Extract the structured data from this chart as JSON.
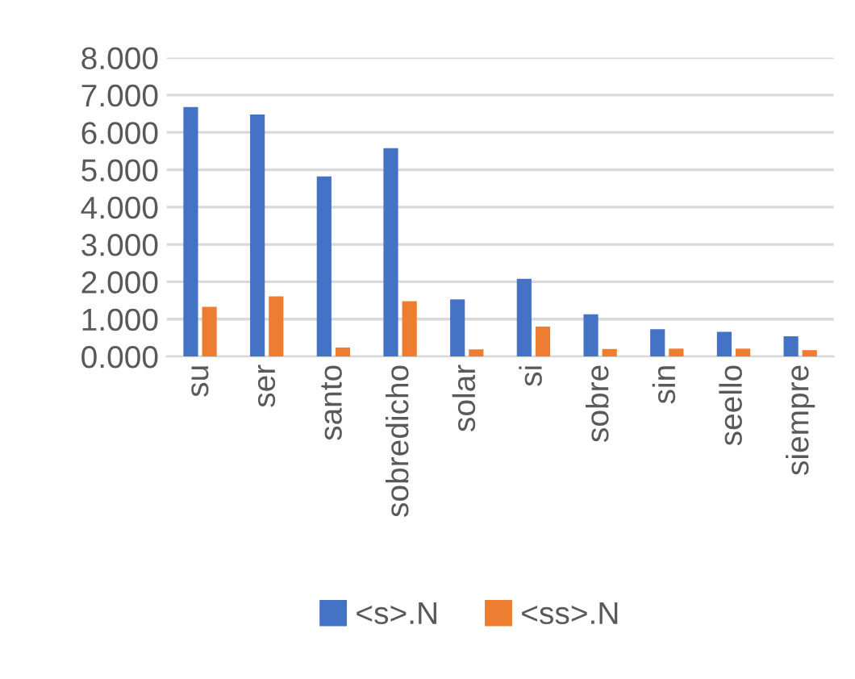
{
  "chart_data": {
    "type": "bar",
    "categories": [
      "su",
      "ser",
      "santo",
      "sobredicho",
      "solar",
      "si",
      "sobre",
      "sin",
      "seello",
      "siempre"
    ],
    "series": [
      {
        "name": "<s>.N",
        "color": "#4472c4",
        "values": [
          6.68,
          6.48,
          4.82,
          5.58,
          1.53,
          2.08,
          1.13,
          0.73,
          0.66,
          0.54
        ]
      },
      {
        "name": "<ss>.N",
        "color": "#ed7d31",
        "values": [
          1.33,
          1.61,
          0.24,
          1.48,
          0.19,
          0.8,
          0.2,
          0.21,
          0.21,
          0.17
        ]
      }
    ],
    "ylim": [
      0,
      8
    ],
    "yticks": [
      {
        "value": 0,
        "label": "0.000"
      },
      {
        "value": 1,
        "label": "1.000"
      },
      {
        "value": 2,
        "label": "2.000"
      },
      {
        "value": 3,
        "label": "3.000"
      },
      {
        "value": 4,
        "label": "4.000"
      },
      {
        "value": 5,
        "label": "5.000"
      },
      {
        "value": 6,
        "label": "6.000"
      },
      {
        "value": 7,
        "label": "7.000"
      },
      {
        "value": 8,
        "label": "8.000"
      }
    ],
    "grid": "y",
    "legend": "bottom"
  }
}
